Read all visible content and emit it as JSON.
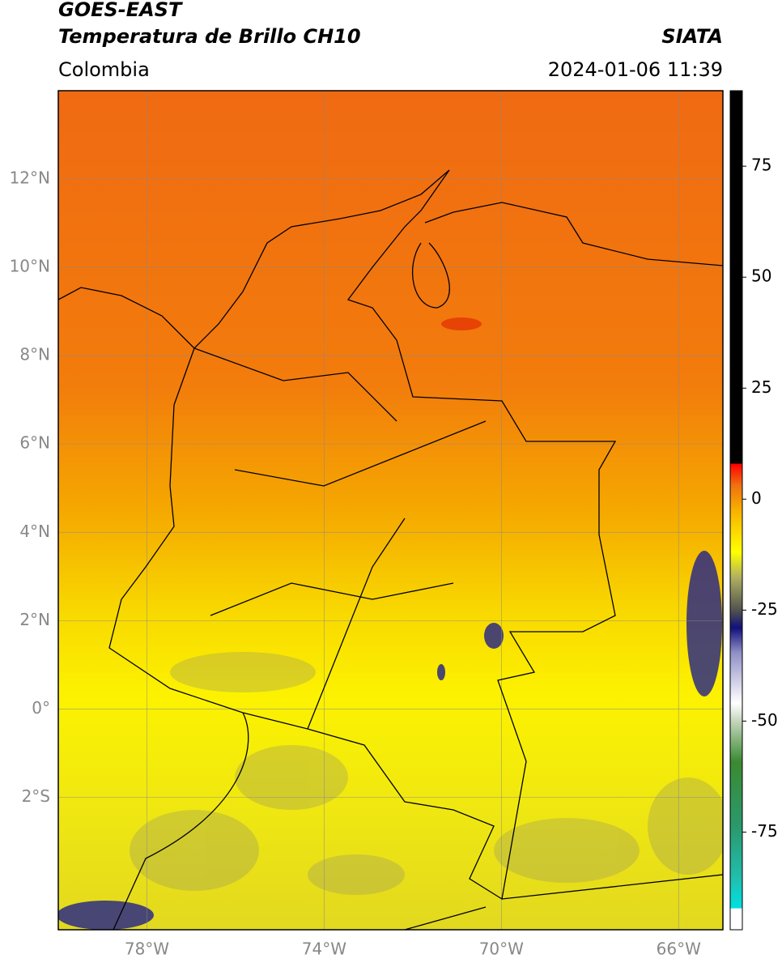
{
  "header": {
    "title": "GOES-EAST",
    "subtitle": "Temperatura de Brillo CH10",
    "source": "SIATA",
    "region": "Colombia",
    "datetime": "2024-01-06 11:39"
  },
  "map": {
    "lonlim": [
      -80,
      -65
    ],
    "latlim": [
      -5,
      14
    ],
    "lonticks": [
      {
        "value": -78,
        "label": "78°W"
      },
      {
        "value": -74,
        "label": "74°W"
      },
      {
        "value": -70,
        "label": "70°W"
      },
      {
        "value": -66,
        "label": "66°W"
      }
    ],
    "latticks": [
      {
        "value": 12,
        "label": "12°N"
      },
      {
        "value": 10,
        "label": "10°N"
      },
      {
        "value": 8,
        "label": "8°N"
      },
      {
        "value": 6,
        "label": "6°N"
      },
      {
        "value": 4,
        "label": "4°N"
      },
      {
        "value": 2,
        "label": "2°N"
      },
      {
        "value": 0,
        "label": "0°"
      },
      {
        "value": -2,
        "label": "2°S"
      }
    ],
    "grid": true,
    "colorbar": {
      "clim": [
        -97,
        92
      ],
      "ticks": [
        75,
        50,
        25,
        0,
        -25,
        -50,
        -75
      ]
    }
  }
}
